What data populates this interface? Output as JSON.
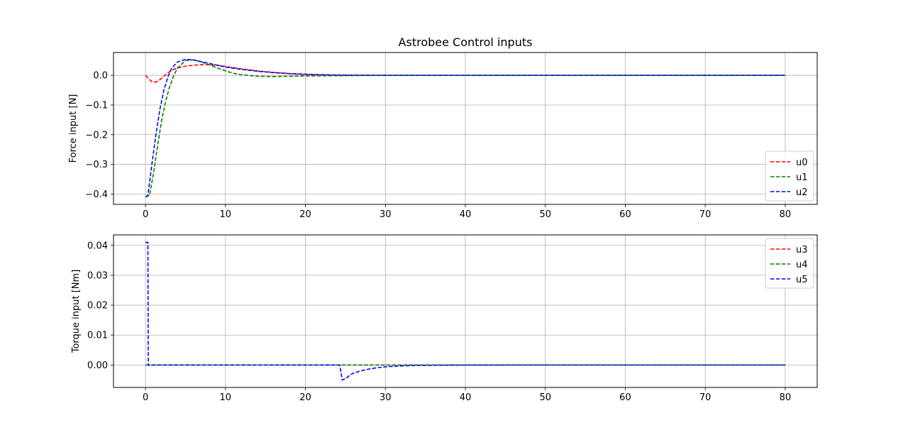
{
  "title": "Astrobee Control inputs",
  "chart_data": [
    {
      "type": "line",
      "title": "Astrobee Control inputs",
      "xlabel": "",
      "ylabel": "Force input [N]",
      "xlim": [
        -4,
        84
      ],
      "ylim": [
        -0.435,
        0.077
      ],
      "xticks": [
        0,
        10,
        20,
        30,
        40,
        50,
        60,
        70,
        80
      ],
      "yticks": [
        -0.4,
        -0.3,
        -0.2,
        -0.1,
        0.0
      ],
      "ytick_labels": [
        "−0.4",
        "−0.3",
        "−0.2",
        "−0.1",
        "0.0"
      ],
      "grid": true,
      "legend": "lower-right",
      "series": [
        {
          "name": "u0",
          "color": "#ff0000",
          "style": "dashed",
          "x": [
            0,
            0.4,
            0.8,
            1.2,
            1.6,
            2,
            2.6,
            3.2,
            4,
            5,
            6,
            7,
            8,
            9,
            10,
            12,
            14,
            16,
            18,
            20,
            22,
            24,
            26,
            30,
            40,
            50,
            60,
            70,
            80
          ],
          "y": [
            0.0,
            -0.012,
            -0.021,
            -0.023,
            -0.019,
            -0.01,
            0.004,
            0.016,
            0.025,
            0.031,
            0.034,
            0.036,
            0.036,
            0.034,
            0.03,
            0.022,
            0.015,
            0.01,
            0.006,
            0.003,
            0.0015,
            0.0008,
            0.0004,
            0.0001,
            0,
            0,
            0,
            0,
            0
          ]
        },
        {
          "name": "u1",
          "color": "#008000",
          "style": "dashed",
          "x": [
            0,
            0.5,
            1,
            1.5,
            2,
            2.5,
            3,
            3.5,
            4,
            5,
            6,
            7,
            8,
            9,
            10,
            11,
            12,
            14,
            16,
            18,
            20,
            24,
            30,
            40,
            50,
            60,
            70,
            80
          ],
          "y": [
            -0.41,
            -0.405,
            -0.33,
            -0.24,
            -0.155,
            -0.09,
            -0.04,
            -0.003,
            0.025,
            0.05,
            0.052,
            0.045,
            0.035,
            0.025,
            0.015,
            0.007,
            0.002,
            -0.003,
            -0.004,
            -0.003,
            -0.002,
            -0.001,
            0,
            0,
            0,
            0,
            0,
            0
          ]
        },
        {
          "name": "u2",
          "color": "#0000ff",
          "style": "dashed",
          "x": [
            0,
            0.3,
            0.8,
            1.3,
            1.8,
            2.3,
            2.8,
            3.3,
            4,
            5,
            6,
            7,
            8,
            10,
            12,
            14,
            16,
            18,
            20,
            22,
            24,
            26,
            30,
            40,
            50,
            60,
            70,
            80
          ],
          "y": [
            -0.41,
            -0.405,
            -0.3,
            -0.2,
            -0.115,
            -0.05,
            -0.005,
            0.025,
            0.045,
            0.054,
            0.052,
            0.046,
            0.04,
            0.028,
            0.02,
            0.014,
            0.009,
            0.006,
            0.004,
            0.002,
            0.001,
            0.0005,
            0,
            0,
            0,
            0,
            0,
            0
          ]
        }
      ]
    },
    {
      "type": "line",
      "title": "",
      "xlabel": "",
      "ylabel": "Torque input [Nm]",
      "xlim": [
        -4,
        84
      ],
      "ylim": [
        -0.0075,
        0.0435
      ],
      "xticks": [
        0,
        10,
        20,
        30,
        40,
        50,
        60,
        70,
        80
      ],
      "yticks": [
        0.0,
        0.01,
        0.02,
        0.03,
        0.04
      ],
      "ytick_labels": [
        "0.00",
        "0.01",
        "0.02",
        "0.03",
        "0.04"
      ],
      "grid": true,
      "legend": "top-right",
      "series": [
        {
          "name": "u3",
          "color": "#ff0000",
          "style": "dashed",
          "x": [
            0,
            80
          ],
          "y": [
            0,
            0
          ]
        },
        {
          "name": "u4",
          "color": "#008000",
          "style": "dashed",
          "x": [
            0,
            80
          ],
          "y": [
            0,
            0
          ]
        },
        {
          "name": "u5",
          "color": "#0000ff",
          "style": "dashed",
          "x": [
            0,
            0.3,
            0.35,
            24.3,
            24.6,
            25,
            25.5,
            26,
            27,
            28,
            29,
            30,
            32,
            34,
            36,
            38,
            40,
            45,
            50,
            60,
            70,
            80
          ],
          "y": [
            0.041,
            0.041,
            0,
            0,
            -0.005,
            -0.0046,
            -0.0035,
            -0.0027,
            -0.0019,
            -0.0013,
            -0.0009,
            -0.0006,
            -0.0003,
            -0.00015,
            -8e-05,
            -4e-05,
            -2e-05,
            0,
            0,
            0,
            0,
            0
          ]
        }
      ]
    }
  ]
}
